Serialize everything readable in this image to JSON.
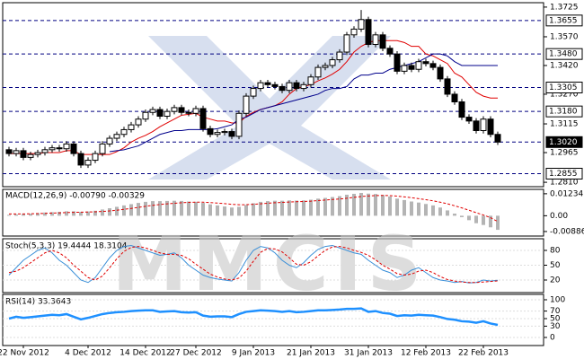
{
  "chart_data": [
    {
      "type": "candlestick",
      "watermark": "MMCIS",
      "categories": [
        null,
        null,
        "22 Nov 2012",
        null,
        null,
        null,
        null,
        null,
        null,
        null,
        null,
        "4 Dec 2012",
        null,
        null,
        null,
        null,
        null,
        null,
        null,
        "14 Dec 2012",
        null,
        null,
        null,
        null,
        null,
        null,
        "27 Dec 2012",
        null,
        null,
        null,
        null,
        null,
        null,
        null,
        "9 Jan 2013",
        null,
        null,
        null,
        null,
        null,
        null,
        null,
        "21 Jan 2013",
        null,
        null,
        null,
        null,
        null,
        null,
        null,
        "31 Jan 2013",
        null,
        null,
        null,
        null,
        null,
        null,
        null,
        "12 Feb 2013",
        null,
        null,
        null,
        null,
        null,
        null,
        null,
        "22 Feb 2013",
        null,
        null
      ],
      "open": [
        1.298,
        1.296,
        1.2975,
        1.294,
        1.2955,
        1.2965,
        1.298,
        1.299,
        1.2985,
        1.301,
        1.296,
        1.29,
        1.2925,
        1.296,
        1.301,
        1.304,
        1.306,
        1.3085,
        1.311,
        1.314,
        1.3175,
        1.319,
        1.3155,
        1.318,
        1.32,
        1.3175,
        1.317,
        1.3195,
        1.309,
        1.306,
        1.307,
        1.3075,
        1.305,
        1.317,
        1.326,
        1.33,
        1.333,
        1.332,
        1.331,
        1.329,
        1.333,
        1.33,
        1.332,
        1.336,
        1.341,
        1.342,
        1.345,
        1.349,
        1.358,
        1.361,
        1.366,
        1.353,
        1.358,
        1.351,
        1.348,
        1.339,
        1.342,
        1.34,
        1.344,
        1.343,
        1.341,
        1.335,
        1.327,
        1.323,
        1.315,
        1.313,
        1.308,
        1.314,
        1.306
      ],
      "high": [
        1.2995,
        1.299,
        1.299,
        1.297,
        1.298,
        1.2995,
        1.3005,
        1.3005,
        1.3025,
        1.3025,
        1.2975,
        1.294,
        1.2975,
        1.3025,
        1.3055,
        1.3075,
        1.31,
        1.3125,
        1.3155,
        1.319,
        1.3205,
        1.3205,
        1.3195,
        1.3215,
        1.3215,
        1.319,
        1.321,
        1.321,
        1.3105,
        1.3085,
        1.309,
        1.309,
        1.3185,
        1.3275,
        1.3315,
        1.3345,
        1.3345,
        1.3335,
        1.3325,
        1.3345,
        1.3345,
        1.3335,
        1.3375,
        1.3425,
        1.3435,
        1.3465,
        1.3505,
        1.3595,
        1.3625,
        1.371,
        1.3675,
        1.3595,
        1.3595,
        1.3525,
        1.3495,
        1.3435,
        1.3435,
        1.3455,
        1.3455,
        1.3445,
        1.3425,
        1.3365,
        1.3285,
        1.3245,
        1.3165,
        1.3145,
        1.3155,
        1.3155,
        1.3075
      ],
      "low": [
        1.2945,
        1.2945,
        1.2925,
        1.2925,
        1.294,
        1.295,
        1.2965,
        1.297,
        1.297,
        1.2945,
        1.2885,
        1.2885,
        1.291,
        1.2945,
        1.2995,
        1.3025,
        1.3045,
        1.307,
        1.3095,
        1.3125,
        1.316,
        1.314,
        1.314,
        1.3165,
        1.316,
        1.3155,
        1.3155,
        1.3075,
        1.3045,
        1.3045,
        1.3055,
        1.3035,
        1.3035,
        1.3155,
        1.3245,
        1.3285,
        1.3305,
        1.3295,
        1.3275,
        1.3275,
        1.3285,
        1.3285,
        1.3305,
        1.3345,
        1.3395,
        1.3405,
        1.3435,
        1.3475,
        1.3565,
        1.3595,
        1.3515,
        1.3515,
        1.3495,
        1.3465,
        1.3375,
        1.3375,
        1.3385,
        1.3385,
        1.3415,
        1.3395,
        1.3335,
        1.3255,
        1.3215,
        1.3135,
        1.3115,
        1.3065,
        1.3065,
        1.3045,
        1.3005
      ],
      "close": [
        1.296,
        1.2975,
        1.294,
        1.2955,
        1.2965,
        1.298,
        1.299,
        1.2985,
        1.301,
        1.296,
        1.29,
        1.2925,
        1.296,
        1.301,
        1.304,
        1.306,
        1.3085,
        1.311,
        1.314,
        1.3175,
        1.319,
        1.3155,
        1.318,
        1.32,
        1.3175,
        1.317,
        1.3195,
        1.309,
        1.306,
        1.307,
        1.3075,
        1.305,
        1.317,
        1.326,
        1.33,
        1.333,
        1.332,
        1.331,
        1.329,
        1.333,
        1.33,
        1.332,
        1.336,
        1.341,
        1.342,
        1.345,
        1.349,
        1.358,
        1.361,
        1.366,
        1.353,
        1.358,
        1.351,
        1.348,
        1.339,
        1.342,
        1.34,
        1.344,
        1.343,
        1.341,
        1.335,
        1.327,
        1.323,
        1.315,
        1.313,
        1.308,
        1.314,
        1.306,
        1.302
      ],
      "up_color": "#ffffff",
      "down_color": "#000000",
      "overlays": [
        {
          "color": "#e00000",
          "values": [
            1.296,
            1.296,
            1.296,
            1.296,
            1.296,
            1.2965,
            1.2965,
            1.2965,
            1.2975,
            1.2975,
            1.2955,
            1.2955,
            1.2955,
            1.2955,
            1.2955,
            1.297,
            1.299,
            1.302,
            1.304,
            1.3055,
            1.3075,
            1.31,
            1.312,
            1.314,
            1.316,
            1.3165,
            1.317,
            1.315,
            1.314,
            1.313,
            1.313,
            1.312,
            1.312,
            1.3155,
            1.3175,
            1.319,
            1.32,
            1.321,
            1.323,
            1.327,
            1.33,
            1.331,
            1.332,
            1.334,
            1.3355,
            1.3375,
            1.34,
            1.344,
            1.349,
            1.352,
            1.354,
            1.355,
            1.355,
            1.355,
            1.355,
            1.354,
            1.352,
            1.352,
            1.348,
            1.347,
            1.345,
            1.343,
            1.338,
            1.336,
            1.332,
            1.328,
            1.326,
            1.325,
            1.325
          ]
        },
        {
          "color": "#00008b",
          "values": [
            null,
            null,
            null,
            null,
            null,
            null,
            null,
            null,
            null,
            null,
            null,
            null,
            null,
            null,
            1.297,
            1.2975,
            1.298,
            1.299,
            1.3,
            1.302,
            1.304,
            1.306,
            1.307,
            1.308,
            1.308,
            1.3085,
            1.3085,
            1.3085,
            1.3085,
            1.309,
            1.31,
            1.311,
            1.314,
            1.315,
            1.317,
            1.319,
            1.32,
            1.321,
            1.322,
            1.323,
            1.324,
            1.325,
            1.326,
            1.327,
            1.329,
            1.33,
            1.33,
            1.331,
            1.335,
            1.337,
            1.337,
            1.338,
            1.338,
            1.34,
            1.341,
            1.342,
            1.343,
            1.344,
            1.346,
            1.348,
            1.348,
            1.347,
            1.344,
            1.342,
            1.342,
            1.342,
            1.342,
            1.342,
            1.342
          ]
        }
      ],
      "ylim": [
        1.2787,
        1.3748
      ],
      "yticks": [
        1.3725,
        {
          "value": 1.357,
          "label": "1.3570"
        },
        {
          "value": 1.342,
          "label": "1.3420"
        },
        {
          "value": 1.327,
          "label": "1.3270"
        },
        1.3115,
        1.2965,
        {
          "value": 1.281,
          "label": "1.2810"
        }
      ],
      "levels": [
        1.3655,
        {
          "value": 1.348,
          "label": "1.3480"
        },
        1.3305,
        {
          "value": 1.318,
          "label": "1.3180"
        },
        {
          "value": 1.302,
          "label": "1.3020",
          "style": "current"
        },
        1.2855
      ],
      "level_color": "#000080"
    },
    {
      "type": "macd",
      "title": "MACD(12,26,9) -0.00790 -0.00329",
      "ylim": [
        -0.0114,
        0.0148
      ],
      "yticks": [
        0.01234,
        {
          "value": 0,
          "label": "0.00"
        },
        -0.00886
      ],
      "series": [
        {
          "kind": "bar",
          "color": "#b4b4b4",
          "values": [
            0.0005,
            0.0008,
            0.001,
            0.0012,
            0.0015,
            0.0018,
            0.002,
            0.0022,
            0.0025,
            0.0025,
            0.0022,
            0.0024,
            0.0028,
            0.0035,
            0.0042,
            0.005,
            0.0058,
            0.0065,
            0.0072,
            0.0078,
            0.0082,
            0.0082,
            0.0083,
            0.0084,
            0.0083,
            0.008,
            0.0078,
            0.0072,
            0.0064,
            0.0058,
            0.0052,
            0.0046,
            0.005,
            0.006,
            0.007,
            0.0078,
            0.0082,
            0.0084,
            0.0084,
            0.0086,
            0.0085,
            0.0086,
            0.009,
            0.0096,
            0.01,
            0.0105,
            0.011,
            0.0118,
            0.0123,
            0.0128,
            0.0124,
            0.0122,
            0.0116,
            0.0108,
            0.0096,
            0.0088,
            0.008,
            0.0074,
            0.0066,
            0.0058,
            0.0046,
            0.003,
            0.0012,
            -0.0008,
            -0.0025,
            -0.0042,
            -0.0052,
            -0.0065,
            -0.0079
          ]
        },
        {
          "kind": "line",
          "dash": true,
          "color": "#e00000",
          "values": [
            0.001,
            0.001,
            0.001,
            0.0011,
            0.0012,
            0.0013,
            0.0015,
            0.0016,
            0.0018,
            0.0019,
            0.002,
            0.0021,
            0.0022,
            0.0024,
            0.0027,
            0.0031,
            0.0036,
            0.0041,
            0.0047,
            0.0053,
            0.0058,
            0.0063,
            0.0067,
            0.007,
            0.0073,
            0.0075,
            0.0076,
            0.0076,
            0.0074,
            0.0071,
            0.0068,
            0.0064,
            0.0062,
            0.0062,
            0.0064,
            0.0067,
            0.007,
            0.0073,
            0.0075,
            0.0077,
            0.0079,
            0.008,
            0.0082,
            0.0085,
            0.0088,
            0.0091,
            0.0094,
            0.0098,
            0.0103,
            0.0108,
            0.0111,
            0.0113,
            0.0114,
            0.0113,
            0.011,
            0.0106,
            0.0101,
            0.0096,
            0.009,
            0.0084,
            0.0076,
            0.0067,
            0.0056,
            0.0044,
            0.0031,
            0.0017,
            0.0004,
            -0.0011,
            -0.0033
          ]
        }
      ]
    },
    {
      "type": "line",
      "title": "Stoch(5,3,3) 19.4444 18.3104",
      "ylim": [
        0,
        100
      ],
      "yticks": [
        80,
        50,
        20
      ],
      "series": [
        {
          "color": "#3a8fd8",
          "values": [
            30,
            45,
            60,
            70,
            80,
            85,
            75,
            60,
            50,
            35,
            20,
            15,
            25,
            45,
            65,
            80,
            88,
            90,
            85,
            80,
            75,
            70,
            72,
            75,
            65,
            50,
            40,
            30,
            25,
            22,
            20,
            18,
            35,
            60,
            80,
            88,
            85,
            75,
            60,
            50,
            45,
            55,
            70,
            82,
            88,
            90,
            85,
            80,
            75,
            72,
            60,
            50,
            40,
            35,
            25,
            30,
            40,
            45,
            35,
            25,
            20,
            18,
            15,
            17,
            14,
            15,
            20,
            18,
            19.4444
          ]
        },
        {
          "color": "#e00000",
          "dash": true,
          "values": [
            35,
            38,
            45,
            55,
            65,
            75,
            80,
            75,
            65,
            50,
            38,
            25,
            20,
            28,
            45,
            63,
            78,
            86,
            88,
            85,
            80,
            75,
            72,
            72,
            70,
            63,
            52,
            42,
            32,
            26,
            22,
            20,
            24,
            38,
            58,
            76,
            84,
            83,
            77,
            65,
            52,
            50,
            57,
            69,
            80,
            87,
            88,
            85,
            80,
            76,
            70,
            61,
            50,
            42,
            33,
            30,
            32,
            38,
            40,
            35,
            27,
            21,
            18,
            16,
            15,
            15,
            16,
            17,
            18.3104
          ]
        }
      ]
    },
    {
      "type": "line",
      "title": "RSI(14) 33.3643",
      "ylim": [
        0,
        100
      ],
      "yticks": [
        100,
        70,
        50,
        30,
        0
      ],
      "series": [
        {
          "color": "#1e90ff",
          "width": 2.5,
          "values": [
            50,
            55,
            52,
            54,
            56,
            58,
            60,
            59,
            62,
            55,
            48,
            52,
            57,
            62,
            65,
            67,
            68,
            70,
            71,
            72,
            72,
            68,
            69,
            70,
            67,
            66,
            67,
            58,
            55,
            56,
            56,
            54,
            62,
            68,
            70,
            72,
            71,
            70,
            68,
            70,
            67,
            68,
            70,
            72,
            72,
            73,
            74,
            76,
            76,
            77,
            68,
            70,
            65,
            63,
            57,
            59,
            58,
            60,
            59,
            58,
            54,
            49,
            47,
            43,
            42,
            39,
            43,
            37,
            33.3643
          ]
        }
      ]
    }
  ]
}
